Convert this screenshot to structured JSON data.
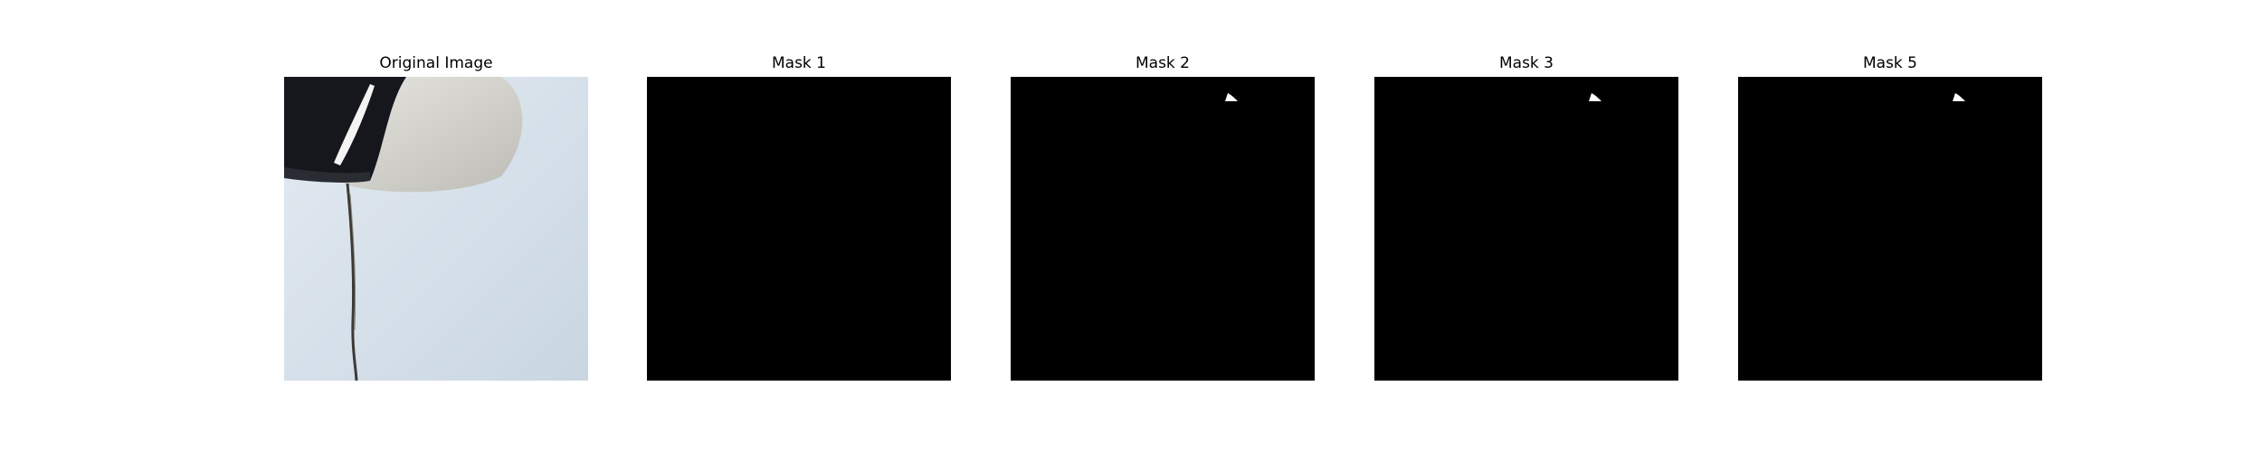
{
  "figure": {
    "panels": [
      {
        "title": "Original Image",
        "kind": "photo",
        "description_icon": "photo-icon"
      },
      {
        "title": "Mask 1",
        "kind": "mask-empty"
      },
      {
        "title": "Mask 2",
        "kind": "mask-small-region"
      },
      {
        "title": "Mask 3",
        "kind": "mask-small-region"
      },
      {
        "title": "Mask 5",
        "kind": "mask-small-region"
      }
    ]
  },
  "colors": {
    "background": "#ffffff",
    "mask_background": "#000000",
    "mask_foreground": "#ffffff",
    "photo_surface": "#d5e0ea",
    "photo_dark": "#15171d",
    "photo_cup": "#d9d8d3"
  }
}
